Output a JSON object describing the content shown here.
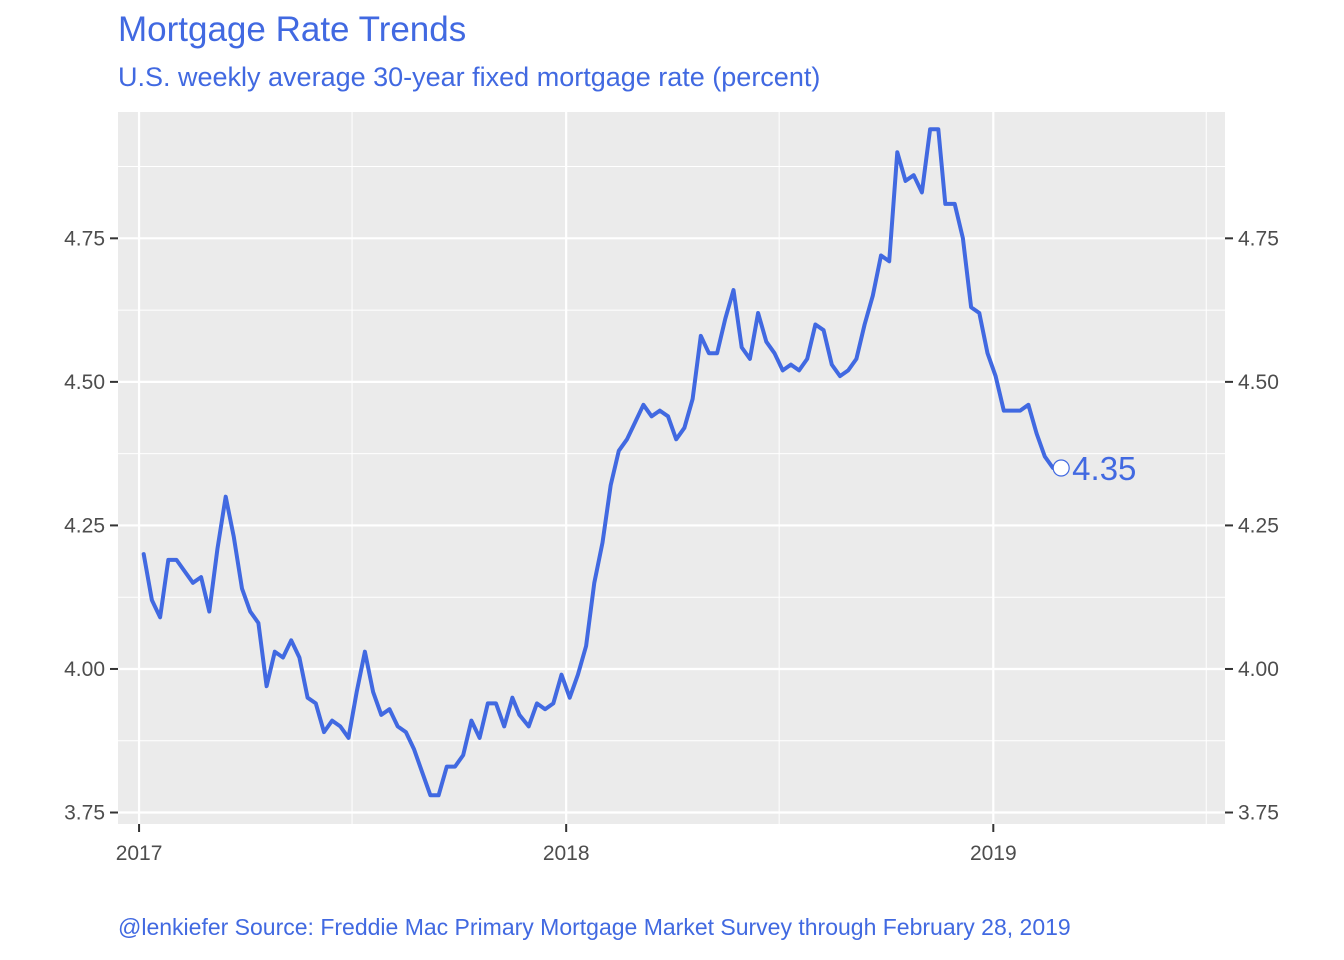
{
  "chart_data": {
    "type": "line",
    "title": "Mortgage Rate Trends",
    "subtitle": "U.S. weekly average 30-year fixed mortgage rate (percent)",
    "caption": "@lenkiefer Source: Freddie Mac Primary Mortgage Market Survey through February 28, 2019",
    "xlabel": "",
    "ylabel": "",
    "x_ticks": [
      "2017",
      "2018",
      "2019"
    ],
    "y_ticks": [
      "3.75",
      "4.00",
      "4.25",
      "4.50",
      "4.75"
    ],
    "ylim": [
      3.73,
      4.97
    ],
    "xlim": [
      "2016-12-14",
      "2019-07-18"
    ],
    "grid": true,
    "secondary_y_axis": true,
    "line_color": "#4169e1",
    "panel_background": "#ebebeb",
    "end_label": "4.35",
    "series": [
      {
        "x": [
          "2017-01-05",
          "2017-01-12",
          "2017-01-19",
          "2017-01-26",
          "2017-02-02",
          "2017-02-09",
          "2017-02-16",
          "2017-02-23",
          "2017-03-02",
          "2017-03-09",
          "2017-03-16",
          "2017-03-23",
          "2017-03-30",
          "2017-04-06",
          "2017-04-13",
          "2017-04-20",
          "2017-04-27",
          "2017-05-04",
          "2017-05-11",
          "2017-05-18",
          "2017-05-25",
          "2017-06-01",
          "2017-06-08",
          "2017-06-15",
          "2017-06-22",
          "2017-06-29",
          "2017-07-06",
          "2017-07-13",
          "2017-07-20",
          "2017-07-27",
          "2017-08-03",
          "2017-08-10",
          "2017-08-17",
          "2017-08-24",
          "2017-08-31",
          "2017-09-07",
          "2017-09-14",
          "2017-09-21",
          "2017-09-28",
          "2017-10-05",
          "2017-10-12",
          "2017-10-19",
          "2017-10-26",
          "2017-11-02",
          "2017-11-09",
          "2017-11-16",
          "2017-11-22",
          "2017-11-30",
          "2017-12-07",
          "2017-12-14",
          "2017-12-21",
          "2017-12-28",
          "2018-01-04",
          "2018-01-11",
          "2018-01-18",
          "2018-01-25",
          "2018-02-01",
          "2018-02-08",
          "2018-02-15",
          "2018-02-22",
          "2018-03-01",
          "2018-03-08",
          "2018-03-15",
          "2018-03-22",
          "2018-03-29",
          "2018-04-05",
          "2018-04-12",
          "2018-04-19",
          "2018-04-26",
          "2018-05-03",
          "2018-05-10",
          "2018-05-17",
          "2018-05-24",
          "2018-05-31",
          "2018-06-07",
          "2018-06-14",
          "2018-06-21",
          "2018-06-28",
          "2018-07-05",
          "2018-07-12",
          "2018-07-19",
          "2018-07-26",
          "2018-08-02",
          "2018-08-09",
          "2018-08-16",
          "2018-08-23",
          "2018-08-30",
          "2018-09-06",
          "2018-09-13",
          "2018-09-20",
          "2018-09-27",
          "2018-10-04",
          "2018-10-11",
          "2018-10-18",
          "2018-10-25",
          "2018-11-01",
          "2018-11-08",
          "2018-11-15",
          "2018-11-21",
          "2018-11-29",
          "2018-12-06",
          "2018-12-13",
          "2018-12-20",
          "2018-12-27",
          "2019-01-03",
          "2019-01-10",
          "2019-01-17",
          "2019-01-24",
          "2019-01-31",
          "2019-02-07",
          "2019-02-14",
          "2019-02-21",
          "2019-02-28"
        ],
        "values": [
          4.2,
          4.12,
          4.09,
          4.19,
          4.19,
          4.17,
          4.15,
          4.16,
          4.1,
          4.21,
          4.3,
          4.23,
          4.14,
          4.1,
          4.08,
          3.97,
          4.03,
          4.02,
          4.05,
          4.02,
          3.95,
          3.94,
          3.89,
          3.91,
          3.9,
          3.88,
          3.96,
          4.03,
          3.96,
          3.92,
          3.93,
          3.9,
          3.89,
          3.86,
          3.82,
          3.78,
          3.78,
          3.83,
          3.83,
          3.85,
          3.91,
          3.88,
          3.94,
          3.94,
          3.9,
          3.95,
          3.92,
          3.9,
          3.94,
          3.93,
          3.94,
          3.99,
          3.95,
          3.99,
          4.04,
          4.15,
          4.22,
          4.32,
          4.38,
          4.4,
          4.43,
          4.46,
          4.44,
          4.45,
          4.44,
          4.4,
          4.42,
          4.47,
          4.58,
          4.55,
          4.55,
          4.61,
          4.66,
          4.56,
          4.54,
          4.62,
          4.57,
          4.55,
          4.52,
          4.53,
          4.52,
          4.54,
          4.6,
          4.59,
          4.53,
          4.51,
          4.52,
          4.54,
          4.6,
          4.65,
          4.72,
          4.71,
          4.9,
          4.85,
          4.86,
          4.83,
          4.94,
          4.94,
          4.81,
          4.81,
          4.75,
          4.63,
          4.62,
          4.55,
          4.51,
          4.45,
          4.45,
          4.45,
          4.46,
          4.41,
          4.37,
          4.35,
          4.35
        ]
      }
    ]
  }
}
